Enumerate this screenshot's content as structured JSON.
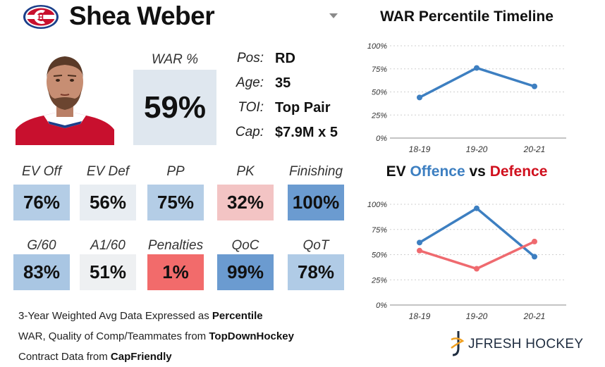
{
  "player": {
    "name": "Shea Weber",
    "war_label": "WAR %",
    "war_value": "59%"
  },
  "info": {
    "pos_label": "Pos:",
    "pos_value": "RD",
    "age_label": "Age:",
    "age_value": "35",
    "toi_label": "TOI:",
    "toi_value": "Top Pair",
    "cap_label": "Cap:",
    "cap_value": "$7.9M x 5"
  },
  "stats": [
    {
      "label": "EV Off",
      "value": "76%",
      "color": "#b4cde6"
    },
    {
      "label": "EV Def",
      "value": "56%",
      "color": "#e8edf2"
    },
    {
      "label": "PP",
      "value": "75%",
      "color": "#b4cde6"
    },
    {
      "label": "PK",
      "value": "32%",
      "color": "#f3c4c4"
    },
    {
      "label": "Finishing",
      "value": "100%",
      "color": "#6b9bd0"
    },
    {
      "label": "G/60",
      "value": "83%",
      "color": "#a9c6e3"
    },
    {
      "label": "A1/60",
      "value": "51%",
      "color": "#eef0f2"
    },
    {
      "label": "Penalties",
      "value": "1%",
      "color": "#f26b6b"
    },
    {
      "label": "QoC",
      "value": "99%",
      "color": "#6b9bd0"
    },
    {
      "label": "QoT",
      "value": "78%",
      "color": "#b0cbe6"
    }
  ],
  "footer": {
    "line1_prefix": "3-Year Weighted Avg Data Expressed as ",
    "line1_bold": "Percentile",
    "line2_prefix": "WAR, Quality of Comp/Teammates from ",
    "line2_bold": "TopDownHockey",
    "line3_prefix": "Contract Data from ",
    "line3_bold": "CapFriendly"
  },
  "brand": {
    "name": "JFRESH HOCKEY"
  },
  "colors": {
    "offence": "#3d7fc1",
    "defence": "#ef6a6f",
    "title_offence": "#3d7fc1",
    "title_defence": "#d0101e"
  },
  "chart_data": [
    {
      "type": "line",
      "title": "WAR Percentile Timeline",
      "categories": [
        "18-19",
        "19-20",
        "20-21"
      ],
      "series": [
        {
          "name": "WAR",
          "values": [
            44,
            76,
            56
          ],
          "color": "#3d7fc1"
        }
      ],
      "yticks": [
        "100%",
        "75%",
        "50%",
        "25%",
        "0%"
      ],
      "ylim": [
        0,
        100
      ]
    },
    {
      "type": "line",
      "title_parts": {
        "a": "EV ",
        "b": "Offence",
        "c": " vs ",
        "d": "Defence"
      },
      "categories": [
        "18-19",
        "19-20",
        "20-21"
      ],
      "series": [
        {
          "name": "Offence",
          "values": [
            62,
            96,
            48
          ],
          "color": "#3d7fc1"
        },
        {
          "name": "Defence",
          "values": [
            54,
            36,
            63
          ],
          "color": "#ef6a6f"
        }
      ],
      "yticks": [
        "100%",
        "75%",
        "50%",
        "25%",
        "0%"
      ],
      "ylim": [
        0,
        100
      ]
    }
  ]
}
